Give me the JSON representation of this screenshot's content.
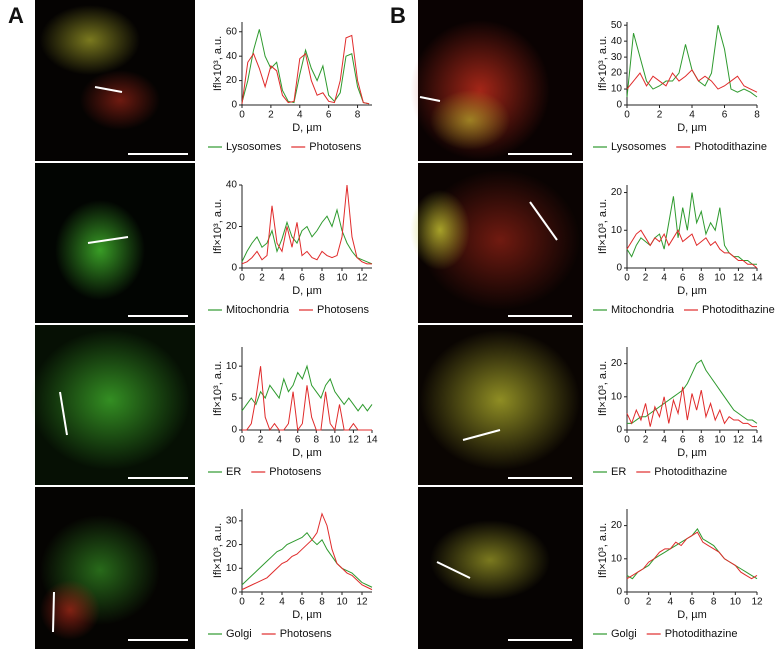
{
  "panel_labels": [
    "A",
    "B"
  ],
  "chart_data": [
    {
      "type": "line",
      "ylabel": "Ifl×10³, a.u.",
      "xlabel": "D, µm",
      "xlim": [
        0,
        9
      ],
      "xticks": [
        0,
        2,
        4,
        6,
        8
      ],
      "ylim": [
        0,
        68
      ],
      "yticks": [
        0,
        20,
        40,
        60
      ],
      "x": [
        0,
        0.4,
        0.8,
        1.2,
        1.6,
        2.0,
        2.4,
        2.8,
        3.2,
        3.6,
        4.0,
        4.4,
        4.8,
        5.2,
        5.6,
        6.0,
        6.4,
        6.8,
        7.2,
        7.6,
        8.0,
        8.4,
        8.8
      ],
      "series": [
        {
          "name": "Lysosomes",
          "color": "#2e9a2e",
          "values": [
            2,
            20,
            45,
            62,
            40,
            30,
            35,
            12,
            3,
            2,
            25,
            45,
            30,
            20,
            32,
            8,
            3,
            10,
            40,
            42,
            15,
            2,
            1
          ]
        },
        {
          "name": "Photosens",
          "color": "#e02b2b",
          "values": [
            1,
            35,
            42,
            30,
            15,
            32,
            28,
            8,
            2,
            3,
            38,
            42,
            20,
            8,
            10,
            3,
            2,
            20,
            55,
            57,
            20,
            2,
            1
          ]
        }
      ]
    },
    {
      "type": "line",
      "ylabel": "Ifl×10³, a.u.",
      "xlabel": "D, µm",
      "xlim": [
        0,
        13
      ],
      "xticks": [
        0,
        2,
        4,
        6,
        8,
        10,
        12
      ],
      "ylim": [
        0,
        40
      ],
      "yticks": [
        0,
        20,
        40
      ],
      "x": [
        0,
        0.5,
        1,
        1.5,
        2,
        2.5,
        3,
        3.5,
        4,
        4.5,
        5,
        5.5,
        6,
        6.5,
        7,
        7.5,
        8,
        8.5,
        9,
        9.5,
        10,
        10.5,
        11,
        11.5,
        12,
        12.5,
        13
      ],
      "series": [
        {
          "name": "Mitochondria",
          "color": "#2e9a2e",
          "values": [
            3,
            8,
            12,
            15,
            10,
            12,
            18,
            8,
            14,
            22,
            15,
            12,
            18,
            20,
            15,
            18,
            22,
            25,
            20,
            28,
            18,
            12,
            8,
            5,
            4,
            3,
            2
          ]
        },
        {
          "name": "Photosens",
          "color": "#e02b2b",
          "values": [
            2,
            3,
            5,
            8,
            4,
            6,
            30,
            12,
            8,
            20,
            10,
            22,
            6,
            8,
            5,
            4,
            8,
            6,
            5,
            6,
            15,
            40,
            15,
            5,
            3,
            2,
            2
          ]
        }
      ]
    },
    {
      "type": "line",
      "ylabel": "Ifl×10³, a.u.",
      "xlabel": "D, µm",
      "xlim": [
        0,
        14
      ],
      "xticks": [
        0,
        2,
        4,
        6,
        8,
        10,
        12,
        14
      ],
      "ylim": [
        0,
        13
      ],
      "yticks": [
        0,
        5,
        10
      ],
      "x": [
        0,
        0.5,
        1,
        1.5,
        2,
        2.5,
        3,
        3.5,
        4,
        4.5,
        5,
        5.5,
        6,
        6.5,
        7,
        7.5,
        8,
        8.5,
        9,
        9.5,
        10,
        10.5,
        11,
        11.5,
        12,
        12.5,
        13,
        13.5,
        14
      ],
      "series": [
        {
          "name": "ER",
          "color": "#2e9a2e",
          "values": [
            3,
            4,
            5,
            4,
            6,
            5,
            7,
            6,
            5,
            8,
            6,
            7,
            9,
            8,
            10,
            7,
            6,
            5,
            7,
            8,
            6,
            5,
            4,
            5,
            4,
            3,
            4,
            3,
            4
          ]
        },
        {
          "name": "Photosens",
          "color": "#e02b2b",
          "values": [
            0,
            0,
            1,
            5,
            10,
            2,
            0,
            1,
            0,
            0,
            1,
            6,
            0,
            1,
            7,
            2,
            0,
            0,
            6,
            1,
            0,
            4,
            0,
            0,
            1,
            0,
            0,
            0,
            0
          ]
        }
      ]
    },
    {
      "type": "line",
      "ylabel": "Ifl×10³, a.u.",
      "xlabel": "D, µm",
      "xlim": [
        0,
        13
      ],
      "xticks": [
        0,
        2,
        4,
        6,
        8,
        10,
        12
      ],
      "ylim": [
        0,
        35
      ],
      "yticks": [
        0,
        10,
        20,
        30
      ],
      "x": [
        0,
        0.5,
        1,
        1.5,
        2,
        2.5,
        3,
        3.5,
        4,
        4.5,
        5,
        5.5,
        6,
        6.5,
        7,
        7.5,
        8,
        8.5,
        9,
        9.5,
        10,
        10.5,
        11,
        11.5,
        12,
        12.5,
        13
      ],
      "series": [
        {
          "name": "Golgi",
          "color": "#2e9a2e",
          "values": [
            3,
            5,
            7,
            9,
            11,
            13,
            15,
            17,
            18,
            20,
            21,
            22,
            23,
            25,
            22,
            20,
            22,
            18,
            15,
            12,
            10,
            9,
            8,
            6,
            4,
            3,
            2
          ]
        },
        {
          "name": "Photosens",
          "color": "#e02b2b",
          "values": [
            1,
            2,
            3,
            4,
            5,
            6,
            8,
            10,
            12,
            13,
            15,
            16,
            18,
            20,
            22,
            25,
            33,
            28,
            18,
            12,
            10,
            8,
            7,
            5,
            3,
            2,
            1
          ]
        }
      ]
    },
    {
      "type": "line",
      "ylabel": "Ifl×10³, a.u.",
      "xlabel": "D, µm",
      "xlim": [
        0,
        8
      ],
      "xticks": [
        0,
        2,
        4,
        6,
        8
      ],
      "ylim": [
        0,
        52
      ],
      "yticks": [
        0,
        10,
        20,
        30,
        40,
        50
      ],
      "x": [
        0,
        0.4,
        0.8,
        1.2,
        1.6,
        2.0,
        2.4,
        2.8,
        3.2,
        3.6,
        4.0,
        4.4,
        4.8,
        5.2,
        5.6,
        6.0,
        6.4,
        6.8,
        7.2,
        7.6,
        8.0
      ],
      "series": [
        {
          "name": "Lysosomes",
          "color": "#2e9a2e",
          "values": [
            5,
            45,
            30,
            15,
            10,
            12,
            15,
            15,
            20,
            38,
            22,
            15,
            12,
            20,
            50,
            35,
            10,
            8,
            10,
            8,
            5
          ]
        },
        {
          "name": "Photodithazine",
          "color": "#e02b2b",
          "values": [
            10,
            15,
            20,
            12,
            18,
            15,
            12,
            20,
            15,
            18,
            22,
            15,
            18,
            15,
            10,
            12,
            15,
            18,
            12,
            10,
            8
          ]
        }
      ]
    },
    {
      "type": "line",
      "ylabel": "Ifl×10³, a.u.",
      "xlabel": "D, µm",
      "xlim": [
        0,
        14
      ],
      "xticks": [
        0,
        2,
        4,
        6,
        8,
        10,
        12,
        14
      ],
      "ylim": [
        0,
        22
      ],
      "yticks": [
        0,
        10,
        20
      ],
      "x": [
        0,
        0.5,
        1,
        1.5,
        2,
        2.5,
        3,
        3.5,
        4,
        4.5,
        5,
        5.5,
        6,
        6.5,
        7,
        7.5,
        8,
        8.5,
        9,
        9.5,
        10,
        10.5,
        11,
        11.5,
        12,
        12.5,
        13,
        13.5,
        14
      ],
      "series": [
        {
          "name": "Mitochondria",
          "color": "#2e9a2e",
          "values": [
            5,
            3,
            6,
            8,
            7,
            6,
            8,
            9,
            5,
            12,
            19,
            8,
            16,
            10,
            20,
            12,
            15,
            9,
            12,
            10,
            16,
            6,
            4,
            3,
            3,
            2,
            2,
            1,
            1
          ]
        },
        {
          "name": "Photodithazine",
          "color": "#e02b2b",
          "values": [
            5,
            7,
            9,
            10,
            8,
            6,
            8,
            7,
            9,
            6,
            8,
            10,
            7,
            8,
            9,
            6,
            7,
            8,
            6,
            7,
            5,
            4,
            4,
            3,
            2,
            2,
            1,
            1,
            0
          ]
        }
      ]
    },
    {
      "type": "line",
      "ylabel": "Ifl×10³, a.u.",
      "xlabel": "D, µm",
      "xlim": [
        0,
        14
      ],
      "xticks": [
        0,
        2,
        4,
        6,
        8,
        10,
        12,
        14
      ],
      "ylim": [
        0,
        25
      ],
      "yticks": [
        0,
        10,
        20
      ],
      "x": [
        0,
        0.5,
        1,
        1.5,
        2,
        2.5,
        3,
        3.5,
        4,
        4.5,
        5,
        5.5,
        6,
        6.5,
        7,
        7.5,
        8,
        8.5,
        9,
        9.5,
        10,
        10.5,
        11,
        11.5,
        12,
        12.5,
        13,
        13.5,
        14
      ],
      "series": [
        {
          "name": "ER",
          "color": "#2e9a2e",
          "values": [
            2,
            2,
            3,
            4,
            4,
            5,
            6,
            7,
            8,
            9,
            10,
            11,
            12,
            14,
            17,
            20,
            21,
            18,
            16,
            14,
            12,
            10,
            8,
            6,
            5,
            4,
            3,
            3,
            2
          ]
        },
        {
          "name": "Photodithazine",
          "color": "#e02b2b",
          "values": [
            5,
            2,
            6,
            3,
            8,
            1,
            7,
            4,
            10,
            2,
            9,
            5,
            13,
            3,
            11,
            6,
            12,
            4,
            8,
            3,
            6,
            2,
            4,
            3,
            3,
            2,
            2,
            1,
            1
          ]
        }
      ]
    },
    {
      "type": "line",
      "ylabel": "Ifl×10³, a.u.",
      "xlabel": "D, µm",
      "xlim": [
        0,
        12
      ],
      "xticks": [
        0,
        2,
        4,
        6,
        8,
        10,
        12
      ],
      "ylim": [
        0,
        25
      ],
      "yticks": [
        0,
        10,
        20
      ],
      "x": [
        0,
        0.5,
        1,
        1.5,
        2,
        2.5,
        3,
        3.5,
        4,
        4.5,
        5,
        5.5,
        6,
        6.5,
        7,
        7.5,
        8,
        8.5,
        9,
        9.5,
        10,
        10.5,
        11,
        11.5,
        12
      ],
      "series": [
        {
          "name": "Golgi",
          "color": "#2e9a2e",
          "values": [
            5,
            4,
            6,
            7,
            8,
            10,
            11,
            12,
            13,
            14,
            15,
            16,
            17,
            19,
            16,
            15,
            14,
            12,
            10,
            9,
            8,
            7,
            6,
            5,
            4
          ]
        },
        {
          "name": "Photodithazine",
          "color": "#e02b2b",
          "values": [
            4,
            5,
            6,
            7,
            9,
            10,
            12,
            13,
            13,
            15,
            14,
            16,
            17,
            18,
            15,
            14,
            13,
            12,
            10,
            9,
            8,
            6,
            5,
            4,
            5
          ]
        }
      ]
    }
  ]
}
